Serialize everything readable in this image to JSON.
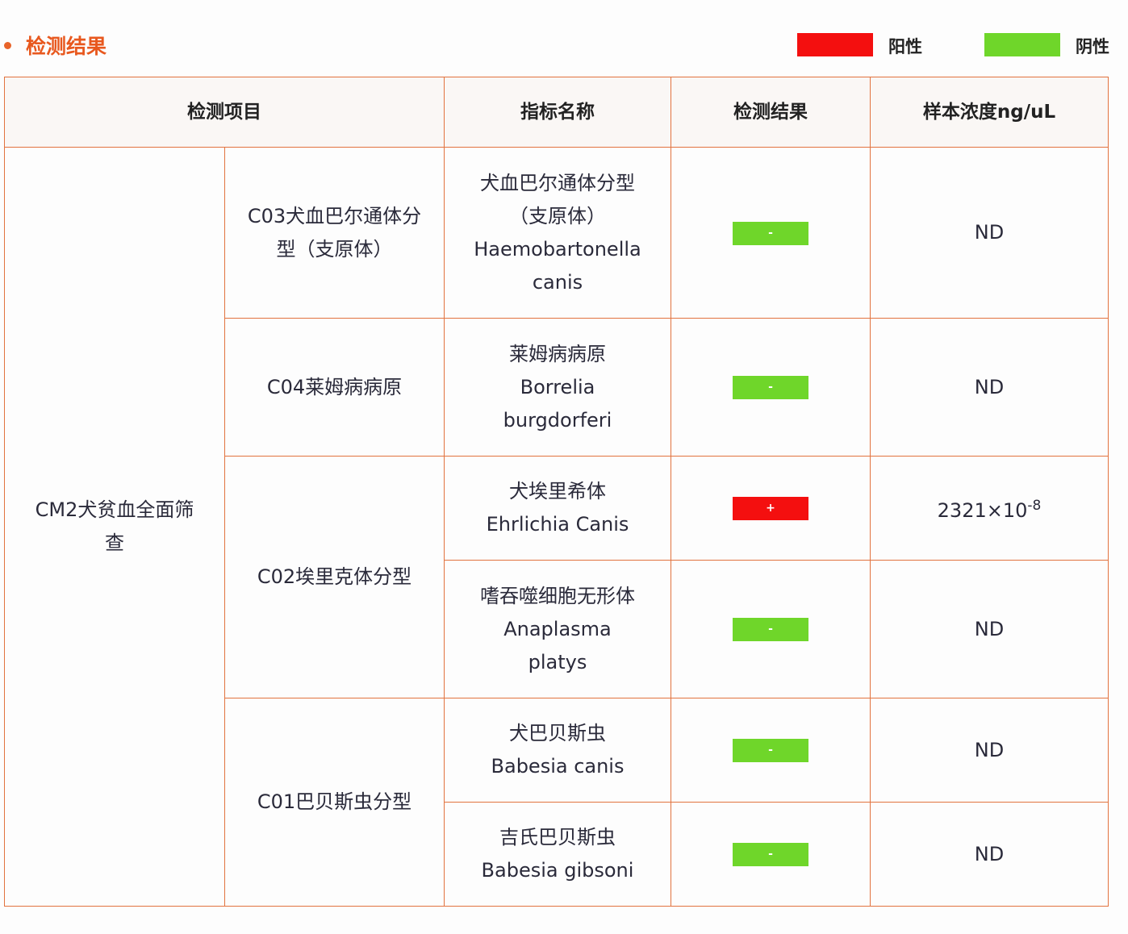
{
  "section_title": "检测结果",
  "legend": [
    {
      "label": "阳性",
      "color": "#f40f0f"
    },
    {
      "label": "阴性",
      "color": "#6fd62a"
    }
  ],
  "columns": [
    "检测项目",
    "指标名称",
    "检测结果",
    "样本浓度ng/uL"
  ],
  "panel": "CM2犬贫血全面筛查",
  "groups": [
    {
      "name": "C03犬血巴尔通体分型（支原体）"
    },
    {
      "name": "C04莱姆病病原"
    },
    {
      "name": "C02埃里克体分型"
    },
    {
      "name": "C01巴贝斯虫分型"
    }
  ],
  "rows": [
    {
      "cn": "犬血巴尔通体分型（支原体）",
      "en": "Haemobartonella canis",
      "result": "-",
      "positive": false,
      "conc": "ND"
    },
    {
      "cn": "莱姆病病原",
      "en": "Borrelia burgdorferi",
      "result": "-",
      "positive": false,
      "conc": "ND"
    },
    {
      "cn": "犬埃里希体",
      "en": "Ehrlichia Canis",
      "result": "+",
      "positive": true,
      "conc": "2321×10",
      "conc_exp": "-8"
    },
    {
      "cn": "嗜吞噬细胞无形体",
      "en": "Anaplasma platys",
      "result": "-",
      "positive": false,
      "conc": "ND"
    },
    {
      "cn": "犬巴贝斯虫",
      "en": "Babesia canis",
      "result": "-",
      "positive": false,
      "conc": "ND"
    },
    {
      "cn": "吉氏巴贝斯虫",
      "en": "Babesia gibsoni",
      "result": "-",
      "positive": false,
      "conc": "ND"
    }
  ]
}
